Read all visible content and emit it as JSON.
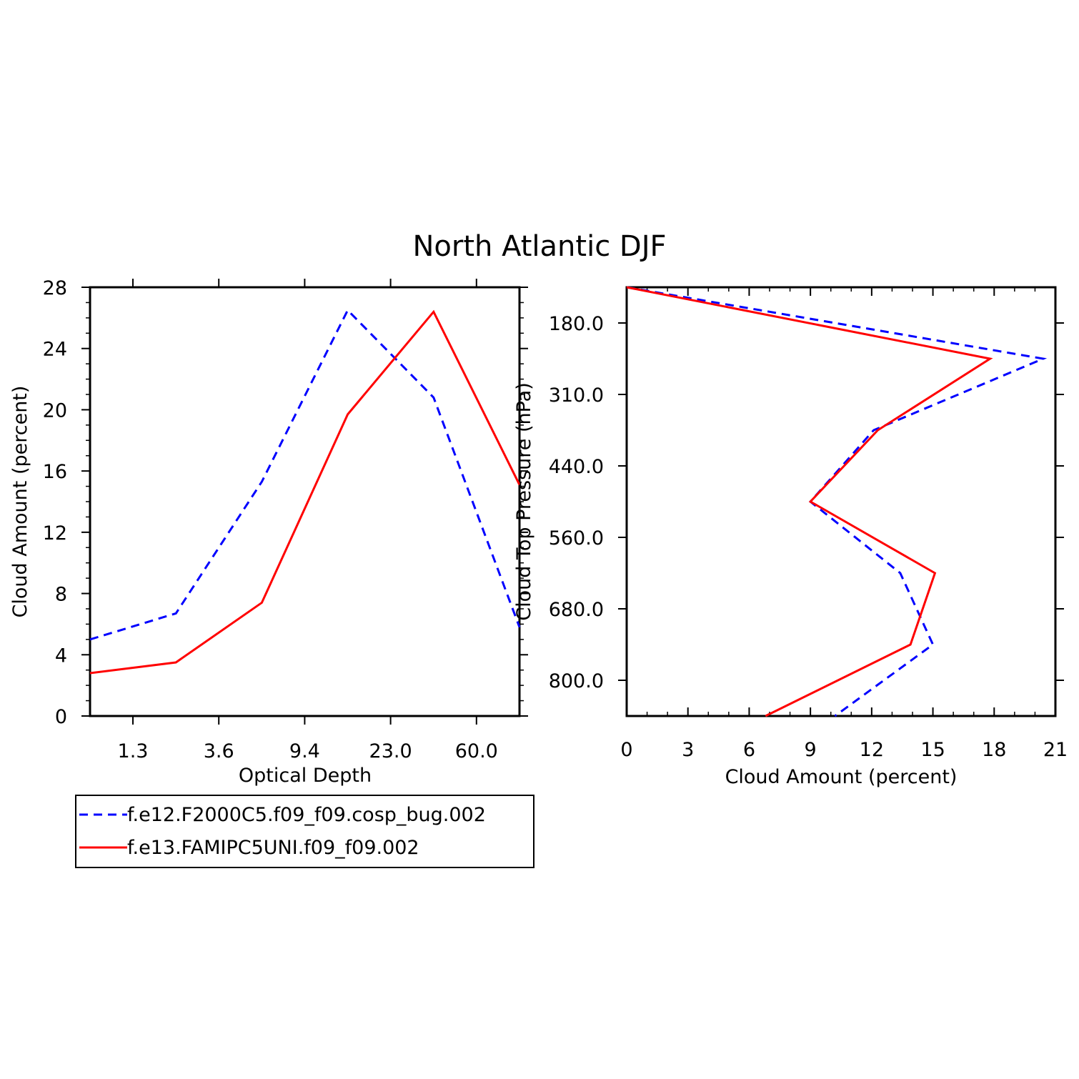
{
  "title": "North Atlantic DJF",
  "colors": {
    "series1": "#0000ff",
    "series2": "#ff0000",
    "axis": "#000000"
  },
  "legend": {
    "placement": "below-left",
    "entries": [
      {
        "label": "f.e12.F2000C5.f09_f09.cosp_bug.002",
        "color": "#0000ff",
        "style": "dashed"
      },
      {
        "label": "f.e13.FAMIPC5UNI.f09_f09.002",
        "color": "#ff0000",
        "style": "solid"
      }
    ]
  },
  "chart_data": [
    {
      "type": "line",
      "xlabel": "Optical Depth",
      "ylabel": "Cloud Amount (percent)",
      "ylim": [
        0,
        28
      ],
      "yticks": [
        0,
        4,
        8,
        12,
        16,
        20,
        24,
        28
      ],
      "xtick_labels": [
        "1.3",
        "3.6",
        "9.4",
        "23.0",
        "60.0"
      ],
      "x_bins": [
        1,
        2,
        3,
        4,
        5,
        6,
        7
      ],
      "series": [
        {
          "name": "f.e12.F2000C5.f09_f09.cosp_bug.002",
          "style": "dashed",
          "values": [
            5.0,
            6.7,
            15.3,
            26.5,
            20.8,
            5.8
          ]
        },
        {
          "name": "f.e13.FAMIPC5UNI.f09_f09.002",
          "style": "solid",
          "values": [
            2.8,
            3.5,
            7.4,
            19.7,
            26.4,
            15.1
          ]
        }
      ]
    },
    {
      "type": "line",
      "xlabel": "Cloud Amount (percent)",
      "ylabel": "Cloud Top Pressure (hPa)",
      "xlim": [
        0,
        21
      ],
      "xticks": [
        0,
        3,
        6,
        9,
        12,
        15,
        18,
        21
      ],
      "ytick_labels": [
        "180.0",
        "310.0",
        "440.0",
        "560.0",
        "680.0",
        "800.0"
      ],
      "y_levels": [
        1,
        2,
        3,
        4,
        5,
        6,
        7
      ],
      "series": [
        {
          "name": "f.e12.F2000C5.f09_f09.cosp_bug.002",
          "style": "dashed",
          "values": [
            0.0,
            20.4,
            12.1,
            9.0,
            13.4,
            15.0,
            10.2
          ]
        },
        {
          "name": "f.e13.FAMIPC5UNI.f09_f09.002",
          "style": "solid",
          "values": [
            0.0,
            17.8,
            12.3,
            9.0,
            15.1,
            13.9,
            6.8
          ]
        }
      ]
    }
  ]
}
